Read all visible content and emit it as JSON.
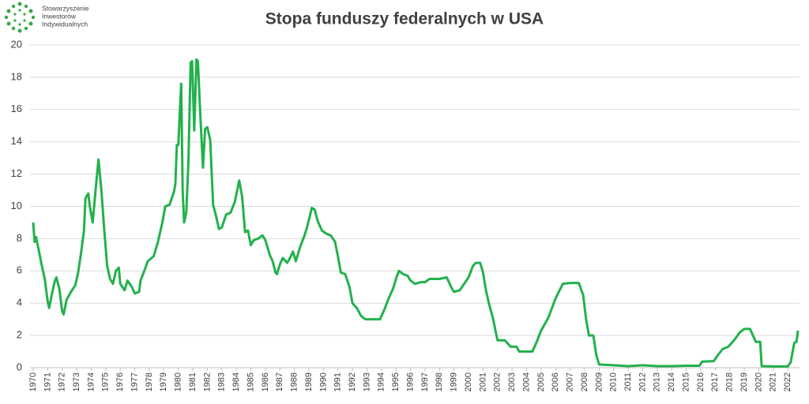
{
  "logo_text": [
    "Stowarzyszenie",
    "Inwestorów",
    "Indywidualnych"
  ],
  "chart_data": {
    "type": "line",
    "title": "Stopa funduszy federalnych w USA",
    "color": "#22b14c",
    "grid": true,
    "xlim": [
      1970,
      2022.7
    ],
    "xticks": [
      1970,
      1971,
      1972,
      1973,
      1974,
      1975,
      1976,
      1977,
      1978,
      1979,
      1980,
      1981,
      1982,
      1983,
      1984,
      1985,
      1986,
      1987,
      1988,
      1989,
      1990,
      1991,
      1992,
      1993,
      1994,
      1995,
      1996,
      1997,
      1998,
      1999,
      2000,
      2001,
      2002,
      2003,
      2004,
      2005,
      2006,
      2007,
      2008,
      2009,
      2010,
      2011,
      2012,
      2013,
      2014,
      2015,
      2016,
      2017,
      2018,
      2019,
      2020,
      2021,
      2022
    ],
    "ylim": [
      0,
      20
    ],
    "yticks": [
      0,
      2,
      4,
      6,
      8,
      10,
      12,
      14,
      16,
      18,
      20
    ],
    "x": [
      1970.0,
      1970.1,
      1970.2,
      1970.4,
      1970.6,
      1970.8,
      1971.0,
      1971.1,
      1971.3,
      1971.5,
      1971.6,
      1971.8,
      1972.0,
      1972.1,
      1972.3,
      1972.6,
      1972.9,
      1973.1,
      1973.3,
      1973.5,
      1973.6,
      1973.8,
      1973.9,
      1974.1,
      1974.3,
      1974.5,
      1974.7,
      1974.9,
      1975.1,
      1975.3,
      1975.5,
      1975.7,
      1975.9,
      1976.0,
      1976.3,
      1976.5,
      1976.8,
      1977.0,
      1977.3,
      1977.4,
      1977.7,
      1977.9,
      1978.3,
      1978.6,
      1978.9,
      1979.1,
      1979.4,
      1979.7,
      1979.8,
      1979.9,
      1980.0,
      1980.2,
      1980.3,
      1980.4,
      1980.55,
      1980.7,
      1980.85,
      1980.95,
      1981.1,
      1981.25,
      1981.35,
      1981.5,
      1981.7,
      1981.85,
      1982.0,
      1982.2,
      1982.4,
      1982.6,
      1982.8,
      1983.0,
      1983.3,
      1983.6,
      1983.9,
      1984.2,
      1984.4,
      1984.6,
      1984.8,
      1985.0,
      1985.2,
      1985.5,
      1985.8,
      1986.0,
      1986.3,
      1986.5,
      1986.7,
      1986.8,
      1987.0,
      1987.2,
      1987.5,
      1987.7,
      1987.9,
      1988.1,
      1988.4,
      1988.7,
      1988.9,
      1989.2,
      1989.4,
      1989.6,
      1989.9,
      1990.2,
      1990.5,
      1990.8,
      1991.0,
      1991.2,
      1991.5,
      1991.8,
      1992.0,
      1992.3,
      1992.6,
      1992.9,
      1993.2,
      1993.6,
      1993.9,
      1994.2,
      1994.5,
      1994.8,
      1995.0,
      1995.2,
      1995.5,
      1995.8,
      1996.0,
      1996.3,
      1996.7,
      1997.0,
      1997.3,
      1997.7,
      1998.0,
      1998.5,
      1998.8,
      1999.0,
      1999.4,
      1999.7,
      2000.0,
      2000.3,
      2000.5,
      2000.8,
      2001.0,
      2001.2,
      2001.4,
      2001.7,
      2001.9,
      2002.0,
      2002.5,
      2002.9,
      2003.3,
      2003.5,
      2004.0,
      2004.4,
      2004.7,
      2005.0,
      2005.5,
      2006.0,
      2006.5,
      2007.0,
      2007.6,
      2007.9,
      2008.1,
      2008.3,
      2008.6,
      2008.8,
      2009.0,
      2010.0,
      2011.0,
      2012.0,
      2013.0,
      2014.0,
      2015.0,
      2015.9,
      2016.1,
      2016.9,
      2017.2,
      2017.5,
      2017.9,
      2018.3,
      2018.7,
      2019.0,
      2019.4,
      2019.6,
      2019.8,
      2020.1,
      2020.2,
      2021.0,
      2022.0,
      2022.2,
      2022.45,
      2022.6,
      2022.7
    ],
    "values": [
      9.0,
      7.8,
      8.1,
      7.2,
      6.3,
      5.5,
      4.1,
      3.7,
      4.6,
      5.4,
      5.6,
      4.9,
      3.5,
      3.3,
      4.2,
      4.7,
      5.1,
      5.9,
      7.1,
      8.5,
      10.5,
      10.8,
      10.0,
      9.0,
      11.0,
      12.9,
      11.0,
      8.5,
      6.3,
      5.5,
      5.2,
      6.0,
      6.2,
      5.2,
      4.8,
      5.4,
      5.0,
      4.6,
      4.7,
      5.4,
      6.1,
      6.6,
      6.9,
      7.8,
      9.0,
      10.0,
      10.1,
      10.9,
      11.4,
      13.8,
      13.8,
      17.6,
      11.0,
      9.0,
      9.6,
      12.8,
      18.9,
      19.0,
      14.7,
      19.1,
      19.0,
      16.0,
      12.4,
      14.8,
      14.9,
      14.1,
      10.1,
      9.4,
      8.6,
      8.7,
      9.5,
      9.6,
      10.3,
      11.6,
      10.6,
      8.4,
      8.5,
      7.6,
      7.9,
      8.0,
      8.2,
      7.9,
      7.0,
      6.6,
      5.9,
      5.8,
      6.4,
      6.8,
      6.5,
      6.8,
      7.2,
      6.6,
      7.5,
      8.2,
      8.8,
      9.9,
      9.8,
      9.1,
      8.5,
      8.3,
      8.2,
      7.8,
      6.9,
      5.9,
      5.8,
      5.0,
      4.0,
      3.7,
      3.2,
      3.0,
      3.0,
      3.0,
      3.0,
      3.6,
      4.3,
      4.9,
      5.5,
      6.0,
      5.8,
      5.7,
      5.4,
      5.2,
      5.3,
      5.3,
      5.5,
      5.5,
      5.5,
      5.6,
      5.0,
      4.7,
      4.8,
      5.2,
      5.6,
      6.3,
      6.5,
      6.5,
      5.9,
      4.8,
      4.0,
      3.0,
      2.1,
      1.7,
      1.7,
      1.3,
      1.3,
      1.0,
      1.0,
      1.0,
      1.6,
      2.3,
      3.1,
      4.3,
      5.2,
      5.25,
      5.25,
      4.5,
      3.0,
      2.0,
      2.0,
      0.8,
      0.2,
      0.15,
      0.1,
      0.15,
      0.1,
      0.1,
      0.12,
      0.12,
      0.38,
      0.41,
      0.8,
      1.15,
      1.3,
      1.7,
      2.2,
      2.4,
      2.4,
      2.0,
      1.6,
      1.6,
      0.1,
      0.08,
      0.08,
      0.33,
      1.55,
      1.6,
      2.3
    ]
  }
}
